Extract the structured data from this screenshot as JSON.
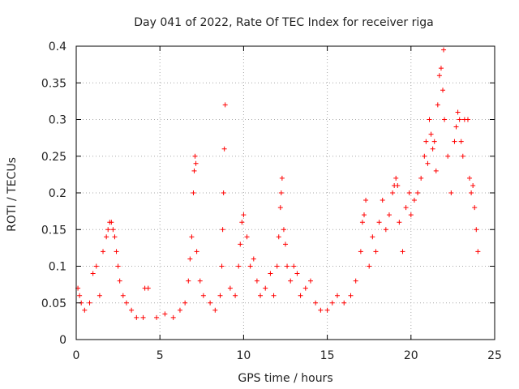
{
  "chart_data": {
    "type": "scatter",
    "title": "Day 041 of 2022, Rate Of TEC Index for receiver riga",
    "xlabel": "GPS time / hours",
    "ylabel": "ROTI / TECUs",
    "xlim": [
      0,
      25
    ],
    "ylim": [
      0,
      0.4
    ],
    "xticks": [
      0,
      5,
      10,
      15,
      20,
      25
    ],
    "xtick_labels": [
      "0",
      "5",
      "10",
      "15",
      "20",
      "25"
    ],
    "yticks": [
      0,
      0.05,
      0.1,
      0.15,
      0.2,
      0.25,
      0.3,
      0.35,
      0.4
    ],
    "ytick_labels": [
      "0",
      "0.05",
      "0.1",
      "0.15",
      "0.2",
      "0.25",
      "0.3",
      "0.35",
      "0.4"
    ],
    "grid": true,
    "marker": "+",
    "color": "#ff0000",
    "series": [
      {
        "name": "ROTI",
        "points": [
          [
            0.1,
            0.07
          ],
          [
            0.2,
            0.06
          ],
          [
            0.3,
            0.05
          ],
          [
            0.5,
            0.04
          ],
          [
            0.8,
            0.05
          ],
          [
            1.0,
            0.09
          ],
          [
            1.2,
            0.1
          ],
          [
            1.4,
            0.06
          ],
          [
            1.6,
            0.12
          ],
          [
            1.8,
            0.14
          ],
          [
            1.9,
            0.15
          ],
          [
            2.0,
            0.16
          ],
          [
            2.1,
            0.16
          ],
          [
            2.2,
            0.15
          ],
          [
            2.3,
            0.14
          ],
          [
            2.4,
            0.12
          ],
          [
            2.5,
            0.1
          ],
          [
            2.6,
            0.08
          ],
          [
            2.8,
            0.06
          ],
          [
            3.0,
            0.05
          ],
          [
            3.3,
            0.04
          ],
          [
            3.6,
            0.03
          ],
          [
            4.0,
            0.03
          ],
          [
            4.1,
            0.07
          ],
          [
            4.3,
            0.07
          ],
          [
            4.8,
            0.03
          ],
          [
            5.3,
            0.035
          ],
          [
            5.8,
            0.03
          ],
          [
            6.2,
            0.04
          ],
          [
            6.5,
            0.05
          ],
          [
            6.7,
            0.08
          ],
          [
            6.8,
            0.11
          ],
          [
            6.9,
            0.14
          ],
          [
            7.0,
            0.2
          ],
          [
            7.05,
            0.23
          ],
          [
            7.1,
            0.25
          ],
          [
            7.15,
            0.24
          ],
          [
            7.2,
            0.12
          ],
          [
            7.4,
            0.08
          ],
          [
            7.6,
            0.06
          ],
          [
            8.0,
            0.05
          ],
          [
            8.3,
            0.04
          ],
          [
            8.6,
            0.06
          ],
          [
            8.7,
            0.1
          ],
          [
            8.75,
            0.15
          ],
          [
            8.8,
            0.2
          ],
          [
            8.85,
            0.26
          ],
          [
            8.9,
            0.32
          ],
          [
            9.2,
            0.07
          ],
          [
            9.5,
            0.06
          ],
          [
            9.7,
            0.1
          ],
          [
            9.8,
            0.13
          ],
          [
            9.9,
            0.16
          ],
          [
            10.0,
            0.17
          ],
          [
            10.2,
            0.14
          ],
          [
            10.4,
            0.1
          ],
          [
            10.6,
            0.11
          ],
          [
            10.8,
            0.08
          ],
          [
            11.0,
            0.06
          ],
          [
            11.3,
            0.07
          ],
          [
            11.6,
            0.09
          ],
          [
            11.8,
            0.06
          ],
          [
            12.0,
            0.1
          ],
          [
            12.1,
            0.14
          ],
          [
            12.2,
            0.18
          ],
          [
            12.25,
            0.2
          ],
          [
            12.3,
            0.22
          ],
          [
            12.4,
            0.15
          ],
          [
            12.5,
            0.13
          ],
          [
            12.6,
            0.1
          ],
          [
            12.8,
            0.08
          ],
          [
            13.0,
            0.1
          ],
          [
            13.2,
            0.09
          ],
          [
            13.4,
            0.06
          ],
          [
            13.7,
            0.07
          ],
          [
            14.0,
            0.08
          ],
          [
            14.3,
            0.05
          ],
          [
            14.6,
            0.04
          ],
          [
            15.0,
            0.04
          ],
          [
            15.3,
            0.05
          ],
          [
            15.6,
            0.06
          ],
          [
            16.0,
            0.05
          ],
          [
            16.4,
            0.06
          ],
          [
            16.7,
            0.08
          ],
          [
            17.0,
            0.12
          ],
          [
            17.1,
            0.16
          ],
          [
            17.2,
            0.17
          ],
          [
            17.3,
            0.19
          ],
          [
            17.5,
            0.1
          ],
          [
            17.7,
            0.14
          ],
          [
            17.9,
            0.12
          ],
          [
            18.1,
            0.16
          ],
          [
            18.3,
            0.19
          ],
          [
            18.5,
            0.15
          ],
          [
            18.7,
            0.17
          ],
          [
            18.9,
            0.2
          ],
          [
            19.0,
            0.21
          ],
          [
            19.1,
            0.22
          ],
          [
            19.2,
            0.21
          ],
          [
            19.3,
            0.16
          ],
          [
            19.5,
            0.12
          ],
          [
            19.7,
            0.18
          ],
          [
            19.9,
            0.2
          ],
          [
            20.0,
            0.17
          ],
          [
            20.2,
            0.19
          ],
          [
            20.4,
            0.2
          ],
          [
            20.6,
            0.22
          ],
          [
            20.8,
            0.25
          ],
          [
            20.9,
            0.27
          ],
          [
            21.0,
            0.24
          ],
          [
            21.1,
            0.3
          ],
          [
            21.2,
            0.28
          ],
          [
            21.3,
            0.26
          ],
          [
            21.4,
            0.27
          ],
          [
            21.5,
            0.23
          ],
          [
            21.6,
            0.32
          ],
          [
            21.7,
            0.36
          ],
          [
            21.8,
            0.37
          ],
          [
            21.9,
            0.34
          ],
          [
            21.95,
            0.395
          ],
          [
            22.0,
            0.3
          ],
          [
            22.2,
            0.25
          ],
          [
            22.4,
            0.2
          ],
          [
            22.6,
            0.27
          ],
          [
            22.7,
            0.29
          ],
          [
            22.8,
            0.31
          ],
          [
            22.9,
            0.3
          ],
          [
            23.0,
            0.27
          ],
          [
            23.1,
            0.25
          ],
          [
            23.2,
            0.3
          ],
          [
            23.4,
            0.3
          ],
          [
            23.5,
            0.22
          ],
          [
            23.6,
            0.2
          ],
          [
            23.7,
            0.21
          ],
          [
            23.8,
            0.18
          ],
          [
            23.9,
            0.15
          ],
          [
            24.0,
            0.12
          ]
        ]
      }
    ]
  }
}
